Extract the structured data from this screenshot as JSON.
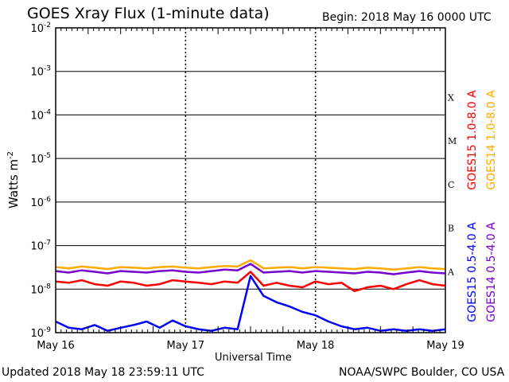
{
  "chart_data": {
    "type": "line",
    "title": "GOES Xray Flux (1-minute data)",
    "begin_label": "Begin:  2018 May 16 0000 UTC",
    "updated_label": "Updated 2018 May 18 23:59:11 UTC",
    "credit_label": "NOAA/SWPC Boulder, CO USA",
    "xlabel": "Universal Time",
    "ylabel": "Watts m",
    "ylabel_sup": "-2",
    "yscale": "log",
    "ylim": [
      1e-09,
      0.01
    ],
    "xlim": [
      0,
      3
    ],
    "x_ticks": [
      {
        "value": 0,
        "label": "May 16"
      },
      {
        "value": 1,
        "label": "May 17"
      },
      {
        "value": 2,
        "label": "May 18"
      },
      {
        "value": 3,
        "label": "May 19"
      }
    ],
    "y_ticks": [
      {
        "exp": "-9",
        "value": 1e-09
      },
      {
        "exp": "-8",
        "value": 1e-08
      },
      {
        "exp": "-7",
        "value": 1e-07
      },
      {
        "exp": "-6",
        "value": 1e-06
      },
      {
        "exp": "-5",
        "value": 1e-05
      },
      {
        "exp": "-4",
        "value": 0.0001
      },
      {
        "exp": "-3",
        "value": 0.001
      },
      {
        "exp": "-2",
        "value": 0.01
      }
    ],
    "flare_classes": [
      {
        "label": "A",
        "value": 1e-08
      },
      {
        "label": "B",
        "value": 1e-07
      },
      {
        "label": "C",
        "value": 1e-06
      },
      {
        "label": "M",
        "value": 1e-05
      },
      {
        "label": "X",
        "value": 0.0001
      }
    ],
    "grid": true,
    "legend_placement": "right",
    "series": [
      {
        "name": "GOES15 1.0-8.0 A",
        "color": "#ff0000",
        "x": [
          0,
          0.1,
          0.2,
          0.3,
          0.4,
          0.5,
          0.6,
          0.7,
          0.8,
          0.9,
          1.0,
          1.1,
          1.2,
          1.3,
          1.4,
          1.5,
          1.6,
          1.7,
          1.8,
          1.9,
          2.0,
          2.1,
          2.2,
          2.3,
          2.4,
          2.5,
          2.6,
          2.7,
          2.8,
          2.9,
          3.0
        ],
        "y": [
          1.5e-08,
          1.4e-08,
          1.6e-08,
          1.3e-08,
          1.2e-08,
          1.5e-08,
          1.4e-08,
          1.2e-08,
          1.3e-08,
          1.6e-08,
          1.5e-08,
          1.4e-08,
          1.3e-08,
          1.5e-08,
          1.4e-08,
          2.5e-08,
          1.2e-08,
          1.4e-08,
          1.2e-08,
          1.1e-08,
          1.5e-08,
          1.3e-08,
          1.4e-08,
          9e-09,
          1.1e-08,
          1.2e-08,
          1e-08,
          1.3e-08,
          1.6e-08,
          1.3e-08,
          1.2e-08
        ]
      },
      {
        "name": "GOES14 1.0-8.0 A",
        "color": "#ffaa00",
        "x": [
          0,
          0.1,
          0.2,
          0.3,
          0.4,
          0.5,
          0.6,
          0.7,
          0.8,
          0.9,
          1.0,
          1.1,
          1.2,
          1.3,
          1.4,
          1.5,
          1.6,
          1.7,
          1.8,
          1.9,
          2.0,
          2.1,
          2.2,
          2.3,
          2.4,
          2.5,
          2.6,
          2.7,
          2.8,
          2.9,
          3.0
        ],
        "y": [
          3.2e-08,
          3e-08,
          3.3e-08,
          3.1e-08,
          2.9e-08,
          3.2e-08,
          3.1e-08,
          3e-08,
          3.2e-08,
          3.3e-08,
          3.1e-08,
          3e-08,
          3.2e-08,
          3.4e-08,
          3.3e-08,
          4.6e-08,
          3e-08,
          3.1e-08,
          3.2e-08,
          3e-08,
          3.2e-08,
          3.1e-08,
          3e-08,
          2.9e-08,
          3.1e-08,
          3e-08,
          2.8e-08,
          3e-08,
          3.2e-08,
          3e-08,
          2.9e-08
        ]
      },
      {
        "name": "GOES15 0.5-4.0 A",
        "color": "#0000ff",
        "x": [
          0,
          0.1,
          0.2,
          0.3,
          0.4,
          0.5,
          0.6,
          0.7,
          0.8,
          0.9,
          1.0,
          1.1,
          1.2,
          1.3,
          1.4,
          1.5,
          1.6,
          1.7,
          1.8,
          1.9,
          2.0,
          2.1,
          2.2,
          2.3,
          2.4,
          2.5,
          2.6,
          2.7,
          2.8,
          2.9,
          3.0
        ],
        "y": [
          1.8e-09,
          1.3e-09,
          1.2e-09,
          1.5e-09,
          1.1e-09,
          1.3e-09,
          1.5e-09,
          1.8e-09,
          1.3e-09,
          1.9e-09,
          1.4e-09,
          1.2e-09,
          1.1e-09,
          1.3e-09,
          1.2e-09,
          2e-08,
          7e-09,
          5e-09,
          4e-09,
          3e-09,
          2.5e-09,
          1.8e-09,
          1.4e-09,
          1.2e-09,
          1.3e-09,
          1.1e-09,
          1.2e-09,
          1.1e-09,
          1.2e-09,
          1.1e-09,
          1.2e-09
        ]
      },
      {
        "name": "GOES14 0.5-4.0 A",
        "color": "#7700cc",
        "x": [
          0,
          0.1,
          0.2,
          0.3,
          0.4,
          0.5,
          0.6,
          0.7,
          0.8,
          0.9,
          1.0,
          1.1,
          1.2,
          1.3,
          1.4,
          1.5,
          1.6,
          1.7,
          1.8,
          1.9,
          2.0,
          2.1,
          2.2,
          2.3,
          2.4,
          2.5,
          2.6,
          2.7,
          2.8,
          2.9,
          3.0
        ],
        "y": [
          2.6e-08,
          2.4e-08,
          2.7e-08,
          2.5e-08,
          2.3e-08,
          2.6e-08,
          2.5e-08,
          2.4e-08,
          2.6e-08,
          2.7e-08,
          2.5e-08,
          2.4e-08,
          2.6e-08,
          2.8e-08,
          2.7e-08,
          3.8e-08,
          2.4e-08,
          2.5e-08,
          2.6e-08,
          2.4e-08,
          2.6e-08,
          2.5e-08,
          2.4e-08,
          2.3e-08,
          2.5e-08,
          2.4e-08,
          2.2e-08,
          2.4e-08,
          2.6e-08,
          2.4e-08,
          2.3e-08
        ]
      }
    ]
  }
}
